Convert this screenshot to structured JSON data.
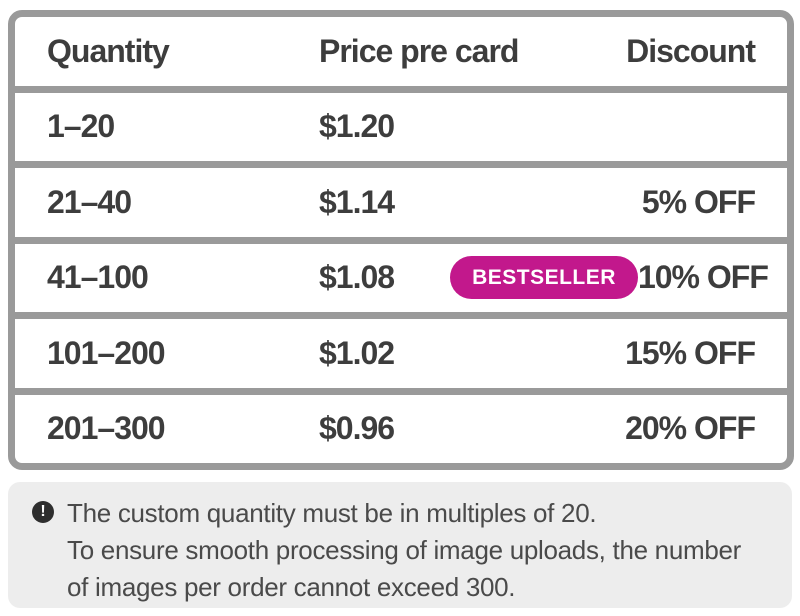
{
  "pricing_table": {
    "headers": [
      "Quantity",
      "Price pre card",
      "Discount"
    ],
    "rows": [
      {
        "quantity": "1–20",
        "price": "$1.20",
        "discount": ""
      },
      {
        "quantity": "21–40",
        "price": "$1.14",
        "discount": "5% OFF"
      },
      {
        "quantity": "41–100",
        "price": "$1.08",
        "badge": "BESTSELLER",
        "discount": "10% OFF"
      },
      {
        "quantity": "101–200",
        "price": "$1.02",
        "discount": "15% OFF"
      },
      {
        "quantity": "201–300",
        "price": "$0.96",
        "discount": "20% OFF"
      }
    ],
    "colors": {
      "border": "#9a9a9a",
      "text": "#3d3d3d",
      "badge": "#c2188c"
    }
  },
  "note": {
    "icon": "exclamation-circle-icon",
    "icon_glyph": "!",
    "lines": [
      "The custom quantity must be in multiples of 20.",
      "To ensure smooth processing of image uploads, the number",
      "of images per order cannot exceed 300."
    ],
    "colors": {
      "background": "#ededed",
      "text": "#4a4a4a"
    }
  }
}
